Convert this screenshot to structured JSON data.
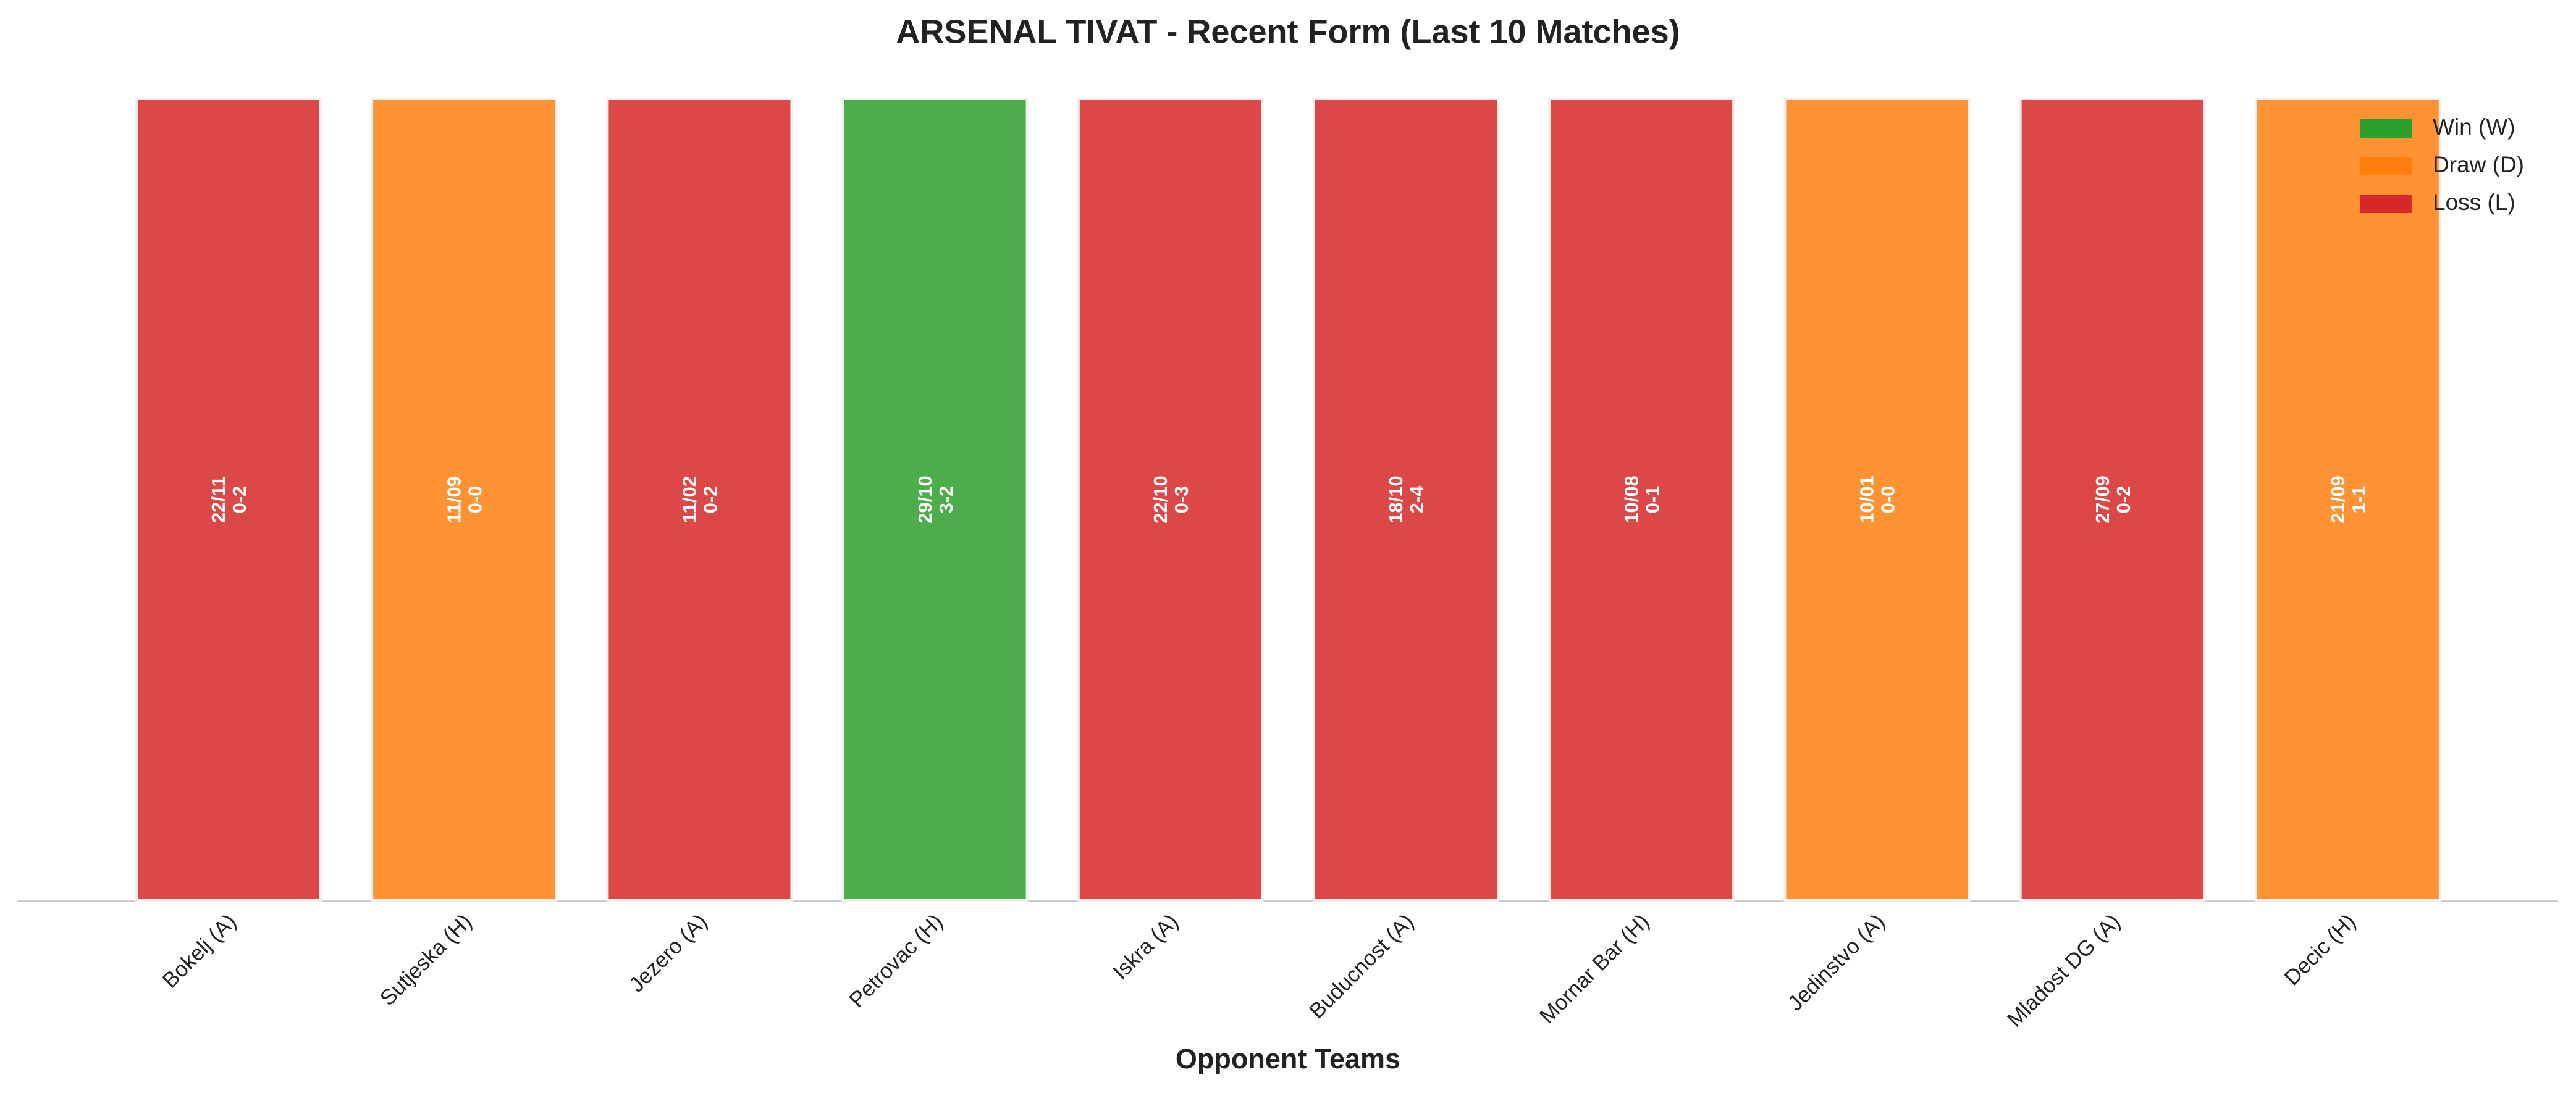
{
  "chart_data": {
    "type": "bar",
    "title": "ARSENAL TIVAT - Recent Form (Last 10 Matches)",
    "x_label": "Opponent Teams",
    "categories": [
      "Bokelj (A)",
      "Sutjeska (H)",
      "Jezero (A)",
      "Petrovac (H)",
      "Iskra (A)",
      "Buducnost (A)",
      "Mornar Bar (H)",
      "Jedinstvo (A)",
      "Mladost DG (A)",
      "Decic (H)"
    ],
    "values": [
      1,
      1,
      1,
      1,
      1,
      1,
      1,
      1,
      1,
      1
    ],
    "ylim": [
      0,
      1
    ],
    "dates": [
      "22/11",
      "11/09",
      "11/02",
      "29/10",
      "22/10",
      "18/10",
      "10/08",
      "10/01",
      "27/09",
      "21/09"
    ],
    "scores": [
      "0-2",
      "0-0",
      "0-2",
      "3-2",
      "0-3",
      "2-4",
      "0-1",
      "0-0",
      "0-2",
      "1-1"
    ],
    "colors": [
      "#d62728",
      "#ff7f0e",
      "#d62728",
      "#2ca02c",
      "#d62728",
      "#d62728",
      "#d62728",
      "#ff7f0e",
      "#d62728",
      "#ff7f0e"
    ],
    "legend": [
      {
        "name": "Win (W)",
        "color": "#2ca02c"
      },
      {
        "name": "Draw (D)",
        "color": "#ff7f0e"
      },
      {
        "name": "Loss (L)",
        "color": "#d62728"
      }
    ],
    "legend_position": "upper right"
  }
}
